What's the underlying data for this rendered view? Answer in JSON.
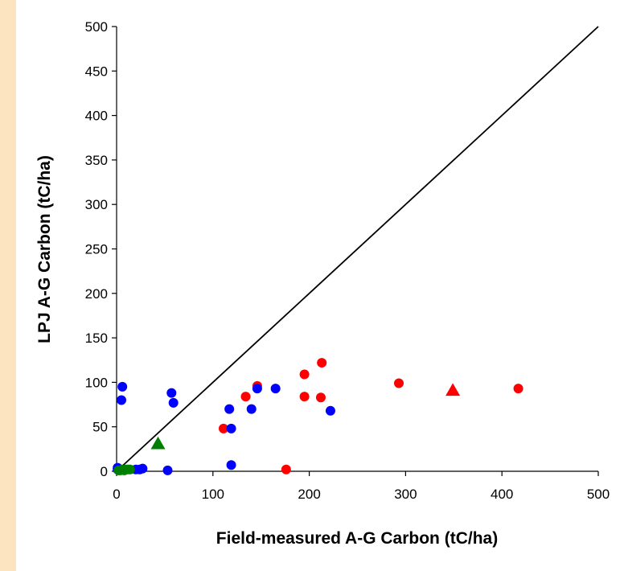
{
  "chart_data": {
    "type": "scatter",
    "title": "",
    "xlabel": "Field-measured A-G Carbon (tC/ha)",
    "ylabel": "LPJ A-G Carbon (tC/ha)",
    "xlim": [
      0,
      500
    ],
    "ylim": [
      0,
      500
    ],
    "x_ticks": [
      0,
      100,
      200,
      300,
      400,
      500
    ],
    "y_ticks": [
      0,
      50,
      100,
      150,
      200,
      250,
      300,
      350,
      400,
      450,
      500
    ],
    "grid": false,
    "legend": "none",
    "reference_line": {
      "from": [
        0,
        0
      ],
      "to": [
        500,
        500
      ],
      "color": "#000000"
    },
    "series": [
      {
        "marker": "circle",
        "color": "#ff0000",
        "points": [
          [
            111,
            48
          ],
          [
            134,
            84
          ],
          [
            146,
            96
          ],
          [
            176,
            2
          ],
          [
            195,
            109
          ],
          [
            195,
            84
          ],
          [
            212,
            83
          ],
          [
            213,
            122
          ],
          [
            293,
            99
          ],
          [
            417,
            93
          ]
        ]
      },
      {
        "marker": "circle",
        "color": "#0000ff",
        "points": [
          [
            1,
            2
          ],
          [
            1,
            4
          ],
          [
            5,
            80
          ],
          [
            6,
            95
          ],
          [
            20,
            2
          ],
          [
            24,
            2
          ],
          [
            27,
            3
          ],
          [
            53,
            1
          ],
          [
            57,
            88
          ],
          [
            59,
            77
          ],
          [
            117,
            70
          ],
          [
            119,
            48
          ],
          [
            119,
            7
          ],
          [
            140,
            70
          ],
          [
            146,
            93
          ],
          [
            165,
            93
          ],
          [
            222,
            68
          ]
        ]
      },
      {
        "marker": "circle",
        "color": "#008000",
        "points": [
          [
            2,
            1
          ],
          [
            4,
            1
          ],
          [
            6,
            2
          ],
          [
            8,
            1
          ],
          [
            10,
            2
          ],
          [
            12,
            2
          ],
          [
            14,
            2
          ]
        ]
      },
      {
        "marker": "triangle",
        "color": "#008000",
        "points": [
          [
            43,
            31
          ]
        ]
      },
      {
        "marker": "triangle",
        "color": "#ff0000",
        "points": [
          [
            349,
            91
          ]
        ]
      }
    ]
  }
}
